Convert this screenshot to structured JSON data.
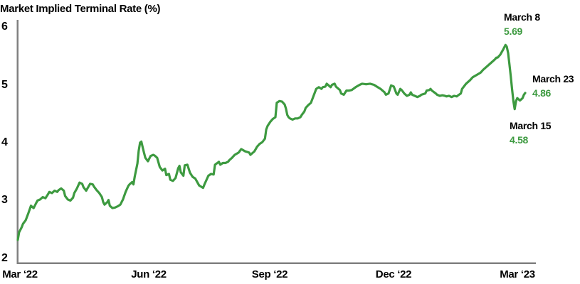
{
  "title": "Market Implied Terminal Rate (%)",
  "chart_data": {
    "type": "line",
    "title": "Market Implied Terminal Rate (%)",
    "series_name": "Market implied terminal rate (%)",
    "x_start_date": "2022-03-01",
    "x_end_date": "2023-03-23",
    "x_unit": "days since 2022-03-01",
    "xlabel": "",
    "ylabel": "",
    "ylim": [
      2,
      6
    ],
    "yticks": [
      "2",
      "3",
      "4",
      "5",
      "6"
    ],
    "xticks": [
      "Mar ‘22",
      "Jun ‘22",
      "Sep ‘22",
      "Dec ‘22",
      "Mar ‘23"
    ],
    "grid": false,
    "legend": "none",
    "line_color": "#3D9A40",
    "axis_color": "#808080",
    "text_color": "#000000",
    "background_color": "#ffffff",
    "points": [
      [
        0,
        2.32
      ],
      [
        1,
        2.45
      ],
      [
        3,
        2.54
      ],
      [
        4,
        2.6
      ],
      [
        6,
        2.66
      ],
      [
        8,
        2.78
      ],
      [
        10,
        2.91
      ],
      [
        12,
        2.87
      ],
      [
        14,
        2.96
      ],
      [
        15,
        3.0
      ],
      [
        17,
        3.02
      ],
      [
        19,
        3.06
      ],
      [
        21,
        3.04
      ],
      [
        23,
        3.11
      ],
      [
        24,
        3.15
      ],
      [
        26,
        3.13
      ],
      [
        28,
        3.17
      ],
      [
        30,
        3.15
      ],
      [
        31,
        3.18
      ],
      [
        33,
        3.21
      ],
      [
        35,
        3.17
      ],
      [
        36,
        3.08
      ],
      [
        38,
        3.02
      ],
      [
        40,
        3.0
      ],
      [
        42,
        3.05
      ],
      [
        43,
        3.13
      ],
      [
        45,
        3.21
      ],
      [
        47,
        3.31
      ],
      [
        49,
        3.29
      ],
      [
        50,
        3.23
      ],
      [
        52,
        3.17
      ],
      [
        53,
        3.21
      ],
      [
        55,
        3.29
      ],
      [
        57,
        3.28
      ],
      [
        58,
        3.24
      ],
      [
        60,
        3.18
      ],
      [
        62,
        3.13
      ],
      [
        64,
        3.06
      ],
      [
        65,
        2.97
      ],
      [
        66,
        2.93
      ],
      [
        68,
        2.97
      ],
      [
        69,
        3.01
      ],
      [
        70,
        2.91
      ],
      [
        72,
        2.87
      ],
      [
        74,
        2.88
      ],
      [
        76,
        2.9
      ],
      [
        78,
        2.93
      ],
      [
        80,
        3.02
      ],
      [
        82,
        3.15
      ],
      [
        84,
        3.25
      ],
      [
        85,
        3.28
      ],
      [
        87,
        3.32
      ],
      [
        88,
        3.28
      ],
      [
        89,
        3.42
      ],
      [
        91,
        3.64
      ],
      [
        92,
        3.86
      ],
      [
        93,
        4.0
      ],
      [
        94,
        4.02
      ],
      [
        95,
        3.92
      ],
      [
        96,
        3.83
      ],
      [
        97,
        3.74
      ],
      [
        99,
        3.68
      ],
      [
        101,
        3.77
      ],
      [
        103,
        3.79
      ],
      [
        104,
        3.78
      ],
      [
        106,
        3.74
      ],
      [
        108,
        3.58
      ],
      [
        110,
        3.52
      ],
      [
        112,
        3.55
      ],
      [
        113,
        3.44
      ],
      [
        115,
        3.46
      ],
      [
        116,
        3.36
      ],
      [
        118,
        3.34
      ],
      [
        120,
        3.39
      ],
      [
        122,
        3.56
      ],
      [
        123,
        3.6
      ],
      [
        124,
        3.49
      ],
      [
        126,
        3.43
      ],
      [
        127,
        3.61
      ],
      [
        129,
        3.62
      ],
      [
        131,
        3.48
      ],
      [
        133,
        3.41
      ],
      [
        135,
        3.38
      ],
      [
        138,
        3.26
      ],
      [
        141,
        3.22
      ],
      [
        142,
        3.28
      ],
      [
        145,
        3.43
      ],
      [
        147,
        3.46
      ],
      [
        149,
        3.45
      ],
      [
        150,
        3.62
      ],
      [
        153,
        3.67
      ],
      [
        154,
        3.62
      ],
      [
        156,
        3.65
      ],
      [
        158,
        3.65
      ],
      [
        160,
        3.67
      ],
      [
        161,
        3.7
      ],
      [
        163,
        3.74
      ],
      [
        165,
        3.79
      ],
      [
        168,
        3.83
      ],
      [
        170,
        3.89
      ],
      [
        173,
        3.85
      ],
      [
        176,
        3.83
      ],
      [
        177,
        3.79
      ],
      [
        180,
        3.85
      ],
      [
        182,
        3.93
      ],
      [
        184,
        3.98
      ],
      [
        186,
        4.01
      ],
      [
        188,
        4.07
      ],
      [
        189,
        4.23
      ],
      [
        190,
        4.29
      ],
      [
        192,
        4.36
      ],
      [
        194,
        4.41
      ],
      [
        196,
        4.44
      ],
      [
        197,
        4.69
      ],
      [
        199,
        4.72
      ],
      [
        201,
        4.71
      ],
      [
        203,
        4.66
      ],
      [
        204,
        4.59
      ],
      [
        205,
        4.48
      ],
      [
        206,
        4.44
      ],
      [
        207,
        4.42
      ],
      [
        209,
        4.4
      ],
      [
        211,
        4.42
      ],
      [
        213,
        4.42
      ],
      [
        215,
        4.44
      ],
      [
        216,
        4.48
      ],
      [
        218,
        4.54
      ],
      [
        219,
        4.6
      ],
      [
        221,
        4.65
      ],
      [
        222,
        4.67
      ],
      [
        223,
        4.69
      ],
      [
        226,
        4.87
      ],
      [
        227,
        4.93
      ],
      [
        229,
        4.96
      ],
      [
        231,
        4.93
      ],
      [
        232,
        4.96
      ],
      [
        234,
        4.97
      ],
      [
        235,
        5.02
      ],
      [
        236,
        5.0
      ],
      [
        238,
        4.96
      ],
      [
        239,
        5.0
      ],
      [
        241,
        5.02
      ],
      [
        242,
        4.97
      ],
      [
        245,
        4.91
      ],
      [
        246,
        4.85
      ],
      [
        248,
        4.83
      ],
      [
        250,
        4.9
      ],
      [
        252,
        4.9
      ],
      [
        254,
        4.91
      ],
      [
        257,
        4.96
      ],
      [
        260,
        5.0
      ],
      [
        262,
        5.02
      ],
      [
        265,
        5.01
      ],
      [
        268,
        5.02
      ],
      [
        271,
        5.0
      ],
      [
        273,
        4.97
      ],
      [
        276,
        4.93
      ],
      [
        279,
        4.87
      ],
      [
        280,
        4.83
      ],
      [
        282,
        4.85
      ],
      [
        284,
        4.99
      ],
      [
        286,
        4.97
      ],
      [
        288,
        4.85
      ],
      [
        289,
        4.83
      ],
      [
        291,
        4.93
      ],
      [
        292,
        4.91
      ],
      [
        294,
        4.85
      ],
      [
        296,
        4.81
      ],
      [
        298,
        4.83
      ],
      [
        299,
        4.87
      ],
      [
        300,
        4.83
      ],
      [
        302,
        4.81
      ],
      [
        304,
        4.79
      ],
      [
        306,
        4.81
      ],
      [
        307,
        4.83
      ],
      [
        310,
        4.85
      ],
      [
        311,
        4.9
      ],
      [
        313,
        4.91
      ],
      [
        314,
        4.93
      ],
      [
        315,
        4.9
      ],
      [
        318,
        4.85
      ],
      [
        319,
        4.83
      ],
      [
        321,
        4.81
      ],
      [
        323,
        4.82
      ],
      [
        325,
        4.81
      ],
      [
        326,
        4.8
      ],
      [
        328,
        4.81
      ],
      [
        330,
        4.79
      ],
      [
        332,
        4.81
      ],
      [
        334,
        4.8
      ],
      [
        335,
        4.82
      ],
      [
        337,
        4.85
      ],
      [
        338,
        4.93
      ],
      [
        341,
        5.02
      ],
      [
        344,
        5.08
      ],
      [
        346,
        5.13
      ],
      [
        349,
        5.17
      ],
      [
        352,
        5.21
      ],
      [
        354,
        5.26
      ],
      [
        357,
        5.32
      ],
      [
        360,
        5.38
      ],
      [
        363,
        5.44
      ],
      [
        364,
        5.47
      ],
      [
        365,
        5.47
      ],
      [
        367,
        5.52
      ],
      [
        369,
        5.6
      ],
      [
        371,
        5.69
      ],
      [
        372,
        5.66
      ],
      [
        373,
        5.55
      ],
      [
        374,
        5.36
      ],
      [
        375,
        5.15
      ],
      [
        376,
        4.93
      ],
      [
        377,
        4.72
      ],
      [
        378,
        4.58
      ],
      [
        379,
        4.72
      ],
      [
        380,
        4.77
      ],
      [
        382,
        4.73
      ],
      [
        383,
        4.75
      ],
      [
        384,
        4.77
      ],
      [
        385,
        4.83
      ],
      [
        386,
        4.86
      ]
    ],
    "annotations": [
      {
        "label": "March 8",
        "value": "5.69",
        "day": 371
      },
      {
        "label": "March 23",
        "value": "4.86",
        "day": 386
      },
      {
        "label": "March 15",
        "value": "4.58",
        "day": 378
      }
    ]
  }
}
